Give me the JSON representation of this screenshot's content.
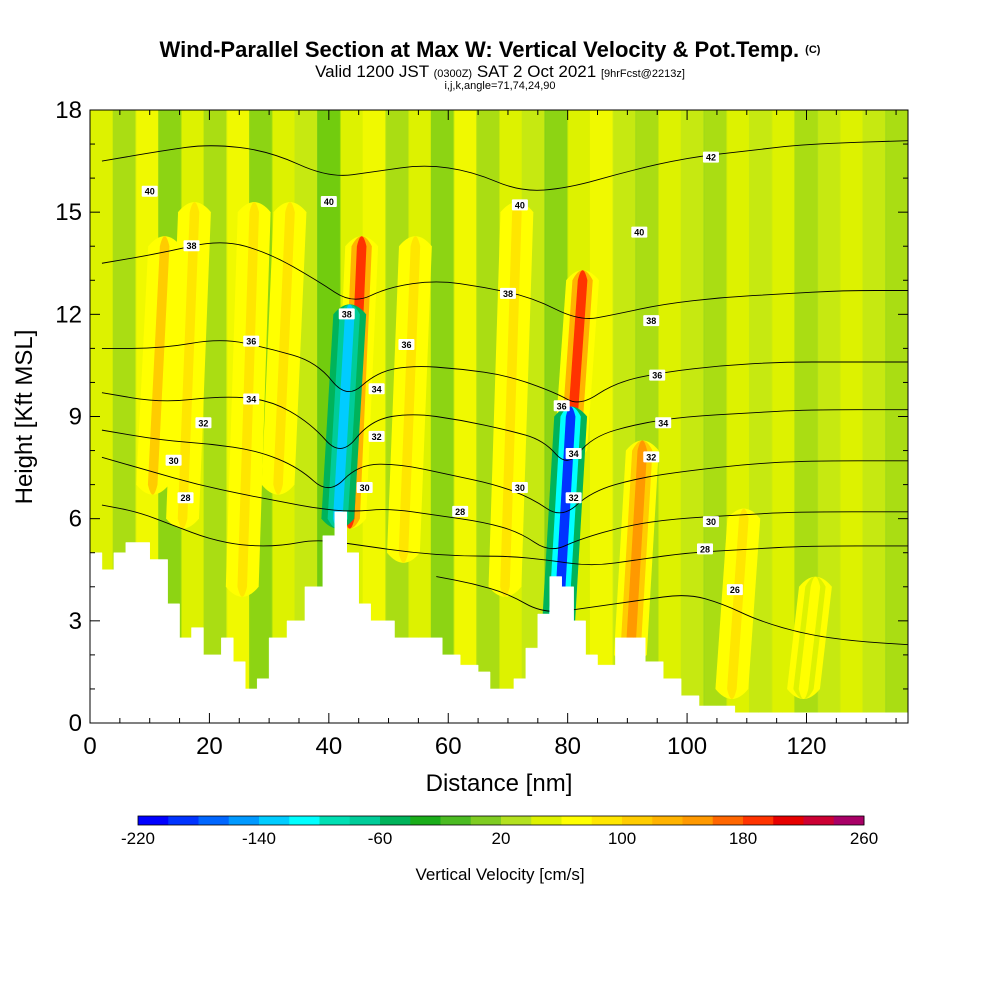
{
  "chart_data": {
    "type": "heatmap",
    "title": "Wind-Parallel Section at Max W: Vertical Velocity & Pot.Temp.",
    "title_mark": "(C)",
    "subtitle": {
      "prefix": "Valid 1200 JST",
      "utc": "(0300Z)",
      "date": "SAT 2 Oct 2021",
      "forecast": "[9hrFcst@2213z]"
    },
    "subtitle2": "i,j,k,angle=71,74,24,90",
    "xlabel": "Distance [nm]",
    "ylabel": "Height [Kft MSL]",
    "xlim": [
      0,
      137
    ],
    "ylim": [
      0,
      18
    ],
    "x_ticks": [
      0,
      20,
      40,
      60,
      80,
      100,
      120
    ],
    "y_ticks": [
      0,
      3,
      6,
      9,
      12,
      15,
      18
    ],
    "colorbar": {
      "label": "Vertical Velocity [cm/s]",
      "range": [
        -220,
        260
      ],
      "step": 20,
      "tick_labels": [
        -220,
        -140,
        -60,
        20,
        100,
        180,
        260
      ],
      "colors": [
        "#0000ff",
        "#0033ff",
        "#0066ff",
        "#0099ff",
        "#00ccff",
        "#00ffff",
        "#00dfb3",
        "#00cc99",
        "#00b35a",
        "#1aad1a",
        "#4bbb22",
        "#7fcc22",
        "#b3e11f",
        "#ddf200",
        "#ffff00",
        "#ffe600",
        "#ffcc00",
        "#ffb300",
        "#ff9900",
        "#ff6600",
        "#ff3300",
        "#e60000",
        "#cc0033",
        "#a80066",
        "#800080",
        "#4b0082"
      ]
    },
    "vertical_velocity_cores": [
      {
        "x": 11,
        "z_top": 14,
        "z_bottom": 7,
        "peak": 100
      },
      {
        "x": 16,
        "z_top": 15,
        "z_bottom": 6,
        "peak": 90
      },
      {
        "x": 26,
        "z_top": 15,
        "z_bottom": 4,
        "peak": 80
      },
      {
        "x": 32,
        "z_top": 15,
        "z_bottom": 7,
        "peak": 80
      },
      {
        "x": 44,
        "z_top": 14,
        "z_bottom": 6,
        "peak": 180
      },
      {
        "x": 42,
        "z_top": 12,
        "z_bottom": 6,
        "peak": -140
      },
      {
        "x": 53,
        "z_top": 14,
        "z_bottom": 5,
        "peak": 90
      },
      {
        "x": 70,
        "z_top": 15,
        "z_bottom": 4,
        "peak": 90
      },
      {
        "x": 81,
        "z_top": 13,
        "z_bottom": 8,
        "peak": 180
      },
      {
        "x": 79,
        "z_top": 9,
        "z_bottom": 3,
        "peak": -200
      },
      {
        "x": 91,
        "z_top": 8,
        "z_bottom": 2,
        "peak": 140
      },
      {
        "x": 108,
        "z_top": 6,
        "z_bottom": 1,
        "peak": 80
      },
      {
        "x": 120,
        "z_top": 4,
        "z_bottom": 1,
        "peak": 70
      }
    ],
    "terrain": [
      [
        0,
        5
      ],
      [
        2,
        4.5
      ],
      [
        4,
        5
      ],
      [
        6,
        5.3
      ],
      [
        8,
        5.3
      ],
      [
        10,
        4.8
      ],
      [
        13,
        3.5
      ],
      [
        15,
        2.5
      ],
      [
        17,
        2.8
      ],
      [
        19,
        2
      ],
      [
        22,
        2.5
      ],
      [
        24,
        1.8
      ],
      [
        26,
        1
      ],
      [
        28,
        1.3
      ],
      [
        30,
        2.5
      ],
      [
        33,
        3
      ],
      [
        36,
        4
      ],
      [
        39,
        5.5
      ],
      [
        41,
        6.2
      ],
      [
        43,
        5
      ],
      [
        45,
        3.5
      ],
      [
        47,
        3
      ],
      [
        51,
        2.5
      ],
      [
        55,
        2.5
      ],
      [
        59,
        2
      ],
      [
        62,
        1.7
      ],
      [
        65,
        1.5
      ],
      [
        67,
        1
      ],
      [
        69,
        1
      ],
      [
        71,
        1.3
      ],
      [
        73,
        2.2
      ],
      [
        75,
        3.2
      ],
      [
        77,
        4.3
      ],
      [
        79,
        4
      ],
      [
        81,
        3
      ],
      [
        83,
        2
      ],
      [
        85,
        1.7
      ],
      [
        88,
        2.5
      ],
      [
        91,
        2.5
      ],
      [
        93,
        1.8
      ],
      [
        96,
        1.3
      ],
      [
        99,
        0.8
      ],
      [
        102,
        0.5
      ],
      [
        105,
        0.5
      ],
      [
        108,
        0.3
      ],
      [
        112,
        0.3
      ],
      [
        116,
        0.3
      ],
      [
        120,
        0.3
      ],
      [
        125,
        0.3
      ],
      [
        130,
        0.3
      ],
      [
        137,
        0.3
      ]
    ],
    "isentropes": [
      {
        "value": 40,
        "points": [
          [
            2,
            16.5
          ],
          [
            12,
            16.8
          ],
          [
            20,
            17
          ],
          [
            30,
            16.8
          ],
          [
            40,
            16
          ],
          [
            48,
            16.2
          ],
          [
            56,
            16.4
          ],
          [
            64,
            16.2
          ],
          [
            72,
            15.6
          ],
          [
            80,
            15.7
          ],
          [
            90,
            16.2
          ],
          [
            100,
            16.6
          ],
          [
            110,
            16.8
          ],
          [
            120,
            17
          ],
          [
            137,
            17.1
          ]
        ]
      },
      {
        "value": 38,
        "points": [
          [
            2,
            13.5
          ],
          [
            12,
            13.8
          ],
          [
            22,
            14.2
          ],
          [
            30,
            13.8
          ],
          [
            38,
            13
          ],
          [
            44,
            12.3
          ],
          [
            50,
            12.8
          ],
          [
            58,
            13
          ],
          [
            66,
            12.8
          ],
          [
            74,
            12.5
          ],
          [
            82,
            11.8
          ],
          [
            88,
            12
          ],
          [
            96,
            12.3
          ],
          [
            106,
            12.5
          ],
          [
            116,
            12.6
          ],
          [
            126,
            12.7
          ],
          [
            137,
            12.7
          ]
        ]
      },
      {
        "value": 36,
        "points": [
          [
            2,
            11
          ],
          [
            12,
            11
          ],
          [
            22,
            11.3
          ],
          [
            30,
            11
          ],
          [
            38,
            10.6
          ],
          [
            43,
            9.5
          ],
          [
            48,
            10.3
          ],
          [
            54,
            10.5
          ],
          [
            62,
            10.4
          ],
          [
            70,
            10.2
          ],
          [
            78,
            9.7
          ],
          [
            82,
            9.3
          ],
          [
            88,
            10
          ],
          [
            96,
            10.3
          ],
          [
            106,
            10.5
          ],
          [
            116,
            10.6
          ],
          [
            126,
            10.6
          ],
          [
            137,
            10.6
          ]
        ]
      },
      {
        "value": 34,
        "points": [
          [
            2,
            9.7
          ],
          [
            12,
            9.4
          ],
          [
            22,
            9.6
          ],
          [
            30,
            9.5
          ],
          [
            37,
            8.8
          ],
          [
            42,
            7.8
          ],
          [
            47,
            8.9
          ],
          [
            54,
            9.1
          ],
          [
            62,
            8.9
          ],
          [
            70,
            8.6
          ],
          [
            76,
            8.3
          ],
          [
            80,
            7.5
          ],
          [
            84,
            8.4
          ],
          [
            92,
            8.8
          ],
          [
            100,
            9
          ],
          [
            110,
            9.1
          ],
          [
            120,
            9.2
          ],
          [
            137,
            9.2
          ]
        ]
      },
      {
        "value": 32,
        "points": [
          [
            2,
            8.6
          ],
          [
            12,
            8.3
          ],
          [
            20,
            8.2
          ],
          [
            28,
            8
          ],
          [
            35,
            7.5
          ],
          [
            40,
            6.7
          ],
          [
            45,
            7.6
          ],
          [
            52,
            7.6
          ],
          [
            60,
            7.3
          ],
          [
            68,
            7
          ],
          [
            74,
            6.6
          ],
          [
            79,
            6
          ],
          [
            84,
            6.8
          ],
          [
            92,
            7.2
          ],
          [
            100,
            7.4
          ],
          [
            110,
            7.6
          ],
          [
            120,
            7.7
          ],
          [
            137,
            7.7
          ]
        ]
      },
      {
        "value": 30,
        "points": [
          [
            2,
            7.8
          ],
          [
            10,
            7.4
          ],
          [
            18,
            7
          ],
          [
            26,
            6.7
          ],
          [
            32,
            6.5
          ],
          [
            38,
            6.3
          ],
          [
            44,
            6.2
          ],
          [
            50,
            6.3
          ],
          [
            58,
            6.1
          ],
          [
            66,
            5.9
          ],
          [
            72,
            5.6
          ],
          [
            77,
            5
          ],
          [
            82,
            5.4
          ],
          [
            90,
            5.8
          ],
          [
            98,
            6
          ],
          [
            108,
            6.1
          ],
          [
            118,
            6.2
          ],
          [
            137,
            6.2
          ]
        ]
      },
      {
        "value": 28,
        "points": [
          [
            2,
            6.4
          ],
          [
            8,
            6.2
          ],
          [
            14,
            5.8
          ],
          [
            20,
            5.4
          ],
          [
            26,
            5.2
          ],
          [
            32,
            5.2
          ],
          [
            38,
            5.4
          ],
          [
            46,
            5.2
          ],
          [
            54,
            5
          ],
          [
            62,
            4.9
          ],
          [
            70,
            4.9
          ],
          [
            76,
            4.8
          ],
          [
            84,
            4.6
          ],
          [
            92,
            4.8
          ],
          [
            100,
            5
          ],
          [
            110,
            5.1
          ],
          [
            120,
            5.2
          ],
          [
            137,
            5.2
          ]
        ]
      },
      {
        "value": 26,
        "points": [
          [
            58,
            4.3
          ],
          [
            64,
            4.1
          ],
          [
            70,
            3.8
          ],
          [
            76,
            3.2
          ],
          [
            84,
            3.4
          ],
          [
            92,
            3.6
          ],
          [
            100,
            3.8
          ],
          [
            106,
            3.5
          ],
          [
            112,
            3
          ],
          [
            120,
            2.6
          ],
          [
            128,
            2.4
          ],
          [
            137,
            2.3
          ]
        ]
      }
    ],
    "isentrope_labels": [
      {
        "text": "40",
        "x": 10,
        "y": 15.6
      },
      {
        "text": "38",
        "x": 17,
        "y": 14
      },
      {
        "text": "36",
        "x": 27,
        "y": 11.2
      },
      {
        "text": "34",
        "x": 27,
        "y": 9.5
      },
      {
        "text": "32",
        "x": 19,
        "y": 8.8
      },
      {
        "text": "30",
        "x": 14,
        "y": 7.7
      },
      {
        "text": "28",
        "x": 16,
        "y": 6.6
      },
      {
        "text": "40",
        "x": 40,
        "y": 15.3
      },
      {
        "text": "38",
        "x": 43,
        "y": 12
      },
      {
        "text": "36",
        "x": 53,
        "y": 11.1
      },
      {
        "text": "34",
        "x": 48,
        "y": 9.8
      },
      {
        "text": "32",
        "x": 48,
        "y": 8.4
      },
      {
        "text": "30",
        "x": 46,
        "y": 6.9
      },
      {
        "text": "28",
        "x": 62,
        "y": 6.2
      },
      {
        "text": "40",
        "x": 72,
        "y": 15.2
      },
      {
        "text": "38",
        "x": 70,
        "y": 12.6
      },
      {
        "text": "36",
        "x": 79,
        "y": 9.3
      },
      {
        "text": "34",
        "x": 81,
        "y": 7.9
      },
      {
        "text": "32",
        "x": 81,
        "y": 6.6
      },
      {
        "text": "30",
        "x": 72,
        "y": 6.9
      },
      {
        "text": "40",
        "x": 92,
        "y": 14.4
      },
      {
        "text": "38",
        "x": 94,
        "y": 11.8
      },
      {
        "text": "36",
        "x": 95,
        "y": 10.2
      },
      {
        "text": "34",
        "x": 96,
        "y": 8.8
      },
      {
        "text": "32",
        "x": 94,
        "y": 7.8
      },
      {
        "text": "30",
        "x": 104,
        "y": 5.9
      },
      {
        "text": "28",
        "x": 103,
        "y": 5.1
      },
      {
        "text": "26",
        "x": 108,
        "y": 3.9
      },
      {
        "text": "42",
        "x": 104,
        "y": 16.6
      }
    ]
  }
}
